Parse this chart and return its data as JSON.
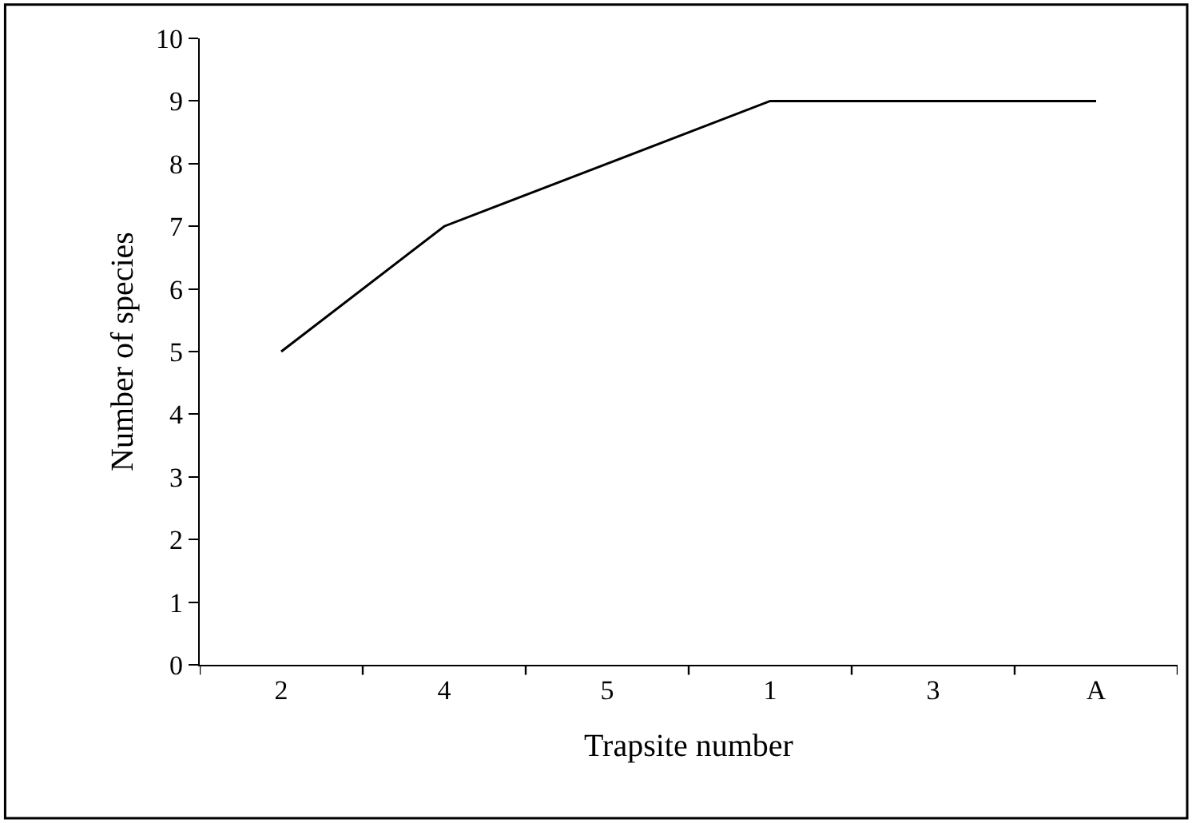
{
  "chart_data": {
    "type": "line",
    "xlabel": "Trapsite number",
    "ylabel": "Number of species",
    "categories": [
      "2",
      "4",
      "5",
      "1",
      "3",
      "A"
    ],
    "series": [
      {
        "color": "#000000",
        "values": [
          5,
          7,
          8,
          9,
          9,
          9
        ]
      }
    ],
    "ylim": [
      0,
      10
    ],
    "yticks": [
      0,
      1,
      2,
      3,
      4,
      5,
      6,
      7,
      8,
      9,
      10
    ],
    "marker": "none",
    "line_style": "solid"
  }
}
